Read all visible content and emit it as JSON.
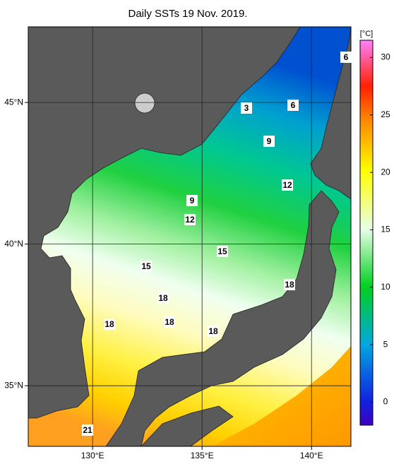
{
  "map_data": {
    "type": "sst-map",
    "title": "Daily SSTs 19 Nov. 2019.",
    "xlim": [
      127.06,
      141.8
    ],
    "ylim": [
      32.86,
      47.67
    ],
    "xticks": [
      {
        "value": 130,
        "label": "130°E"
      },
      {
        "value": 135,
        "label": "135°E"
      },
      {
        "value": 140,
        "label": "140°E"
      }
    ],
    "yticks": [
      {
        "value": 35,
        "label": "35°N"
      },
      {
        "value": 40,
        "label": "40°N"
      },
      {
        "value": 45,
        "label": "45°N"
      }
    ],
    "colorbar": {
      "unit": "[°C]",
      "lim": [
        -2,
        31.5
      ],
      "ticks": [
        0,
        5,
        10,
        15,
        20,
        25,
        30
      ]
    },
    "contour_labels": [
      3,
      6,
      6,
      9,
      9,
      12,
      12,
      15,
      15,
      18,
      18,
      18,
      18,
      18,
      21
    ],
    "grid": true
  }
}
